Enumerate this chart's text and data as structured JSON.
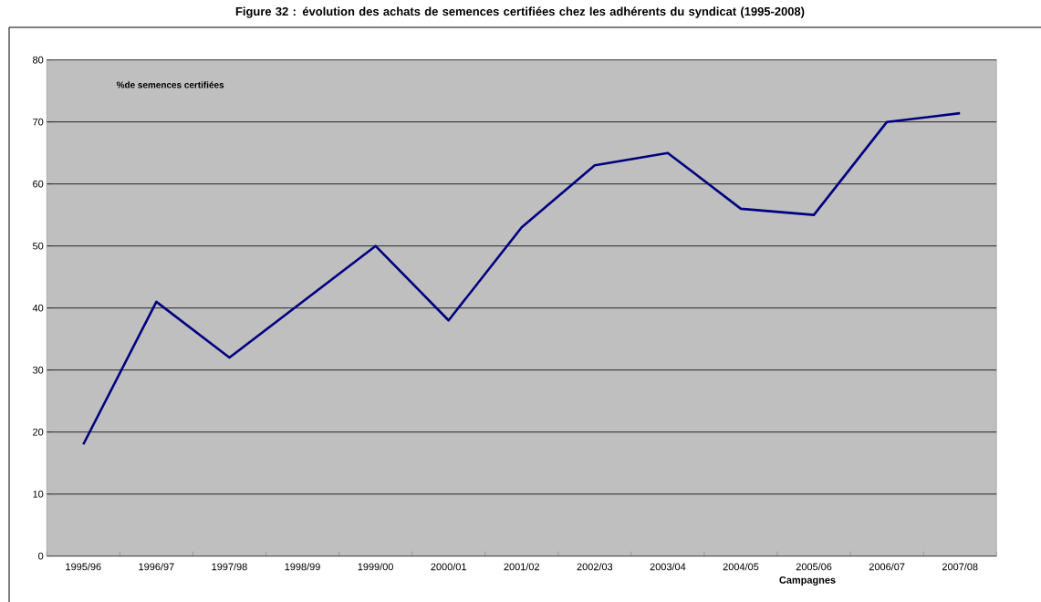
{
  "chart_data": {
    "type": "line",
    "title": "Figure 32 : évolution des achats de semences certifiées chez les adhérents du syndicat (1995-2008)",
    "ylabel": "%de semences certifiées",
    "xlabel": "Campagnes",
    "categories": [
      "1995/96",
      "1996/97",
      "1997/98",
      "1998/99",
      "1999/00",
      "2000/01",
      "2001/02",
      "2002/03",
      "2003/04",
      "2004/05",
      "2005/06",
      "2006/07",
      "2007/08"
    ],
    "series": [
      {
        "color": "#000080",
        "values": [
          18,
          41,
          32,
          41,
          50,
          38,
          53,
          63,
          65,
          56,
          55,
          70,
          71.4
        ]
      }
    ],
    "ylim": [
      0,
      80
    ],
    "yticks": [
      0,
      10,
      20,
      30,
      40,
      50,
      60,
      70,
      80
    ],
    "grid": "y",
    "marker": "none",
    "line_style": "solid"
  }
}
